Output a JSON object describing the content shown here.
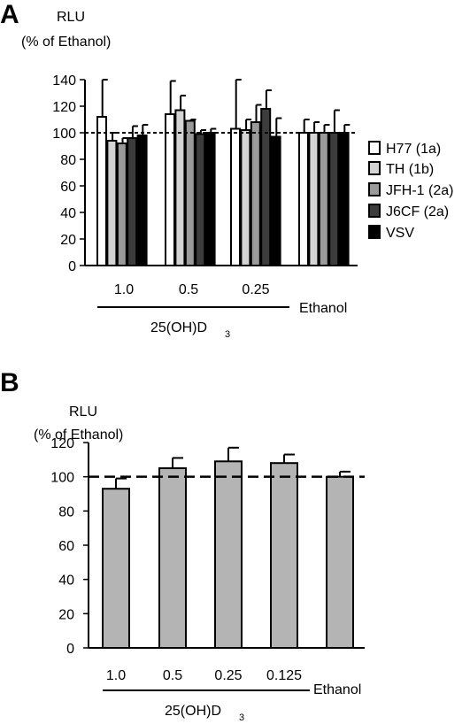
{
  "chart_data": [
    {
      "panel": "A",
      "type": "bar",
      "ylabel": [
        "RLU",
        "(% of Ethanol)"
      ],
      "ylim": [
        0,
        140
      ],
      "yticks": [
        0,
        20,
        40,
        60,
        80,
        100,
        120,
        140
      ],
      "categories": [
        "1.0",
        "0.5",
        "0.25",
        ""
      ],
      "group_label": "25(OH)D",
      "group_label_sub": "3",
      "control_label": "Ethanol",
      "reference_line": 100,
      "legend_position": "right",
      "series": [
        {
          "name": "H77 (1a)",
          "color": "#ffffff",
          "values": [
            112,
            114,
            103,
            100
          ],
          "errors": [
            28,
            25,
            37,
            10
          ]
        },
        {
          "name": "TH (1b)",
          "color": "#d4d4d4",
          "values": [
            94,
            117,
            102,
            100
          ],
          "errors": [
            6,
            11,
            8,
            8
          ]
        },
        {
          "name": "JFH-1 (2a)",
          "color": "#9a9a9a",
          "values": [
            92,
            109,
            108,
            100
          ],
          "errors": [
            4,
            1,
            13,
            6
          ]
        },
        {
          "name": "J6CF (2a)",
          "color": "#3c3c3c",
          "values": [
            96,
            99,
            118,
            100
          ],
          "errors": [
            9,
            3,
            14,
            17
          ]
        },
        {
          "name": "VSV",
          "color": "#000000",
          "values": [
            98,
            100,
            97,
            100
          ],
          "errors": [
            8,
            3,
            14,
            6
          ]
        }
      ]
    },
    {
      "panel": "B",
      "type": "bar",
      "ylabel": [
        "RLU",
        "(% of Ethanol)"
      ],
      "ylim": [
        0,
        120
      ],
      "yticks": [
        0,
        20,
        40,
        60,
        80,
        100,
        120
      ],
      "categories": [
        "1.0",
        "0.5",
        "0.25",
        "0.125",
        ""
      ],
      "group_label": "25(OH)D",
      "group_label_sub": "3",
      "control_label": "Ethanol",
      "reference_line": 100,
      "bar_color": "#b4b4b4",
      "values": [
        93,
        105,
        109,
        108,
        100
      ],
      "errors": [
        6,
        6,
        8,
        5,
        3
      ]
    }
  ]
}
